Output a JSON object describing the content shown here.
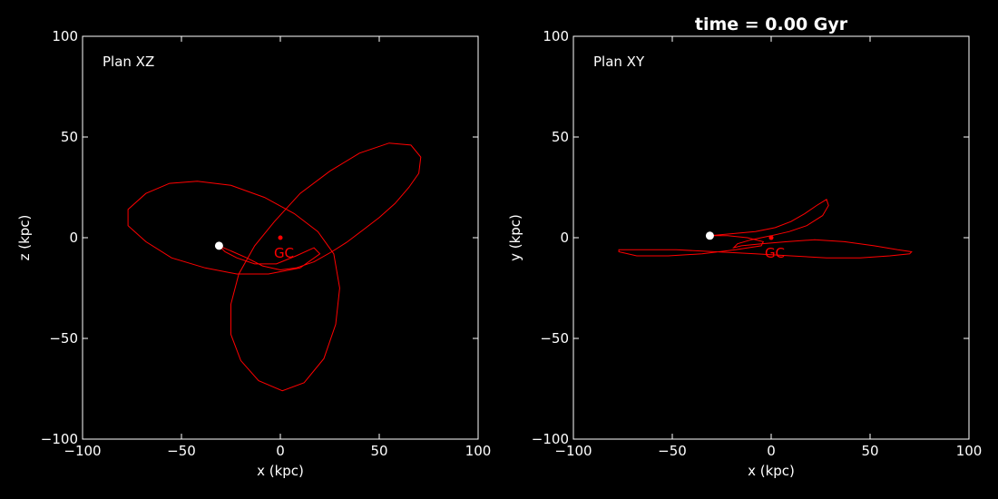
{
  "title": "time = 0.00 Gyr",
  "colors": {
    "background": "#000000",
    "axes": "#ffffff",
    "orbit": "#ff0000",
    "satellite": "#ffffff",
    "center": "#ff0000"
  },
  "chart_data": [
    {
      "type": "line",
      "panel": "Plan XZ",
      "annotation": "Plan XZ",
      "xlabel": "x (kpc)",
      "ylabel": "z (kpc)",
      "xlim": [
        -100,
        100
      ],
      "ylim": [
        -100,
        100
      ],
      "xticks": [
        -100,
        -50,
        0,
        50,
        100
      ],
      "yticks": [
        -100,
        -50,
        0,
        50,
        100
      ],
      "xtick_labels": [
        "−100",
        "−50",
        "0",
        "50",
        "100"
      ],
      "ytick_labels": [
        "−100",
        "−50",
        "0",
        "50",
        "100"
      ],
      "orbit": {
        "x": [
          -31,
          -24,
          -17,
          -9,
          0,
          8,
          17,
          26,
          34,
          42,
          50,
          58,
          65,
          70,
          71,
          66,
          55,
          40,
          25,
          10,
          -3,
          -13,
          -21,
          -25,
          -25,
          -20,
          -11,
          1,
          12,
          22,
          28,
          30,
          27,
          19,
          7,
          -8,
          -25,
          -42,
          -56,
          -68,
          -77,
          -77,
          -68,
          -55,
          -38,
          -22,
          -6,
          10,
          20,
          17,
          8,
          -2,
          -13,
          -22,
          -28,
          -31
        ],
        "y": [
          -4,
          -7,
          -10,
          -14,
          -16,
          -15,
          -12,
          -7,
          -2,
          4,
          10,
          17,
          25,
          32,
          40,
          46,
          47,
          42,
          33,
          22,
          8,
          -4,
          -18,
          -33,
          -48,
          -61,
          -71,
          -76,
          -72,
          -60,
          -43,
          -25,
          -8,
          3,
          12,
          20,
          26,
          28,
          27,
          22,
          14,
          6,
          -2,
          -10,
          -15,
          -18,
          -18,
          -15,
          -8,
          -5,
          -9,
          -13,
          -13,
          -10,
          -7,
          -4
        ]
      },
      "satellite": {
        "x": -31,
        "y": -4
      },
      "center": {
        "x": 0,
        "y": 0,
        "label": "GC"
      }
    },
    {
      "type": "line",
      "panel": "Plan XY",
      "annotation": "Plan XY",
      "xlabel": "x (kpc)",
      "ylabel": "y (kpc)",
      "xlim": [
        -100,
        100
      ],
      "ylim": [
        -100,
        100
      ],
      "xticks": [
        -100,
        -50,
        0,
        50,
        100
      ],
      "yticks": [
        -100,
        -50,
        0,
        50,
        100
      ],
      "xtick_labels": [
        "−100",
        "−50",
        "0",
        "50",
        "100"
      ],
      "ytick_labels": [
        "−100",
        "−50",
        "0",
        "50",
        "100"
      ],
      "orbit": {
        "x": [
          -31,
          -20,
          -8,
          2,
          10,
          17,
          23,
          28,
          29,
          26,
          18,
          9,
          0,
          -10,
          -17,
          -19,
          -15,
          -5,
          8,
          22,
          37,
          52,
          64,
          71,
          70,
          60,
          45,
          28,
          10,
          -8,
          -28,
          -48,
          -66,
          -77,
          -77,
          -68,
          -52,
          -35,
          -18,
          -5,
          -4,
          -12,
          -22,
          -31
        ],
        "y": [
          1,
          2,
          3,
          5,
          8,
          12,
          16,
          19,
          16,
          11,
          6,
          3,
          1,
          -1,
          -3,
          -5,
          -4,
          -3,
          -2,
          -1,
          -2,
          -4,
          -6,
          -7,
          -8,
          -9,
          -10,
          -10,
          -9,
          -8,
          -7,
          -6,
          -6,
          -6,
          -7,
          -9,
          -9,
          -8,
          -6,
          -4,
          -2,
          0,
          1,
          1
        ]
      },
      "satellite": {
        "x": -31,
        "y": 1
      },
      "center": {
        "x": 0,
        "y": 0,
        "label": "GC"
      }
    }
  ]
}
